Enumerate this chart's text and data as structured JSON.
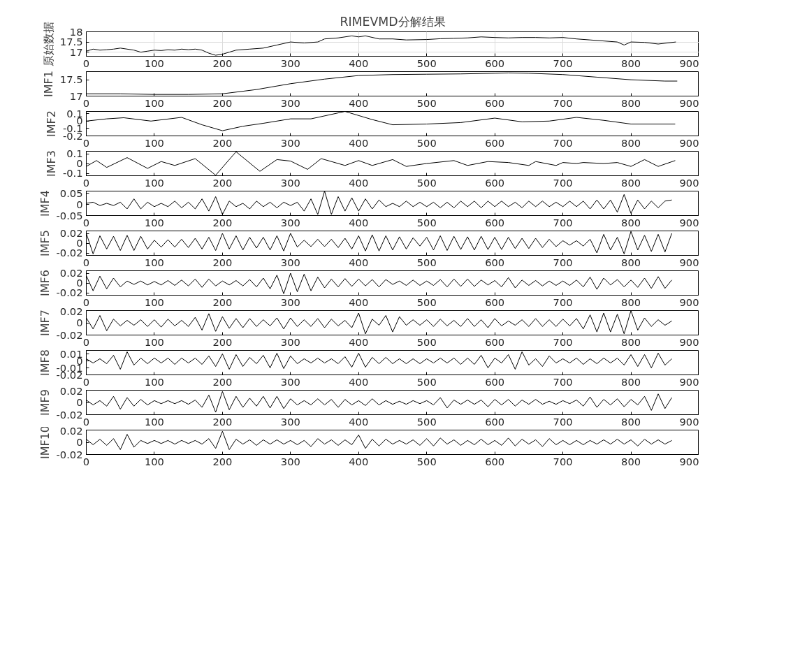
{
  "chart_data": [
    {
      "type": "line",
      "title": "RIMEVMD分解结果",
      "ylabel": "原始数据",
      "color": "#000000",
      "grid": true,
      "xlim": [
        0,
        900
      ],
      "xticks": [
        0,
        100,
        200,
        300,
        400,
        500,
        600,
        700,
        800,
        900
      ],
      "ylim": [
        16.8,
        18
      ],
      "yticks": [
        17,
        17.5,
        18
      ],
      "x": [
        0,
        10,
        20,
        30,
        40,
        50,
        60,
        70,
        80,
        90,
        100,
        110,
        120,
        130,
        140,
        150,
        160,
        170,
        180,
        190,
        200,
        210,
        220,
        240,
        260,
        280,
        300,
        320,
        340,
        350,
        370,
        390,
        400,
        410,
        430,
        450,
        470,
        500,
        520,
        540,
        560,
        580,
        600,
        620,
        640,
        660,
        680,
        700,
        720,
        740,
        760,
        780,
        790,
        800,
        820,
        840,
        866
      ],
      "values": [
        17.05,
        17.15,
        17.1,
        17.12,
        17.15,
        17.2,
        17.15,
        17.1,
        17.0,
        17.05,
        17.1,
        17.08,
        17.12,
        17.1,
        17.15,
        17.12,
        17.15,
        17.1,
        16.95,
        16.85,
        16.9,
        17.0,
        17.1,
        17.15,
        17.2,
        17.35,
        17.5,
        17.45,
        17.5,
        17.65,
        17.7,
        17.8,
        17.75,
        17.8,
        17.65,
        17.65,
        17.6,
        17.62,
        17.66,
        17.68,
        17.7,
        17.75,
        17.72,
        17.7,
        17.72,
        17.72,
        17.7,
        17.72,
        17.65,
        17.6,
        17.55,
        17.5,
        17.35,
        17.5,
        17.48,
        17.4,
        17.5
      ]
    },
    {
      "type": "line",
      "ylabel": "IMF1",
      "color": "#000000",
      "xlim": [
        0,
        900
      ],
      "xticks": [
        0,
        100,
        200,
        300,
        400,
        500,
        600,
        700,
        800,
        900
      ],
      "ylim": [
        17,
        17.75
      ],
      "yticks": [
        17,
        17.5
      ],
      "x": [
        0,
        50,
        100,
        150,
        200,
        250,
        300,
        350,
        400,
        450,
        500,
        550,
        600,
        620,
        650,
        700,
        750,
        800,
        850,
        868
      ],
      "values": [
        17.07,
        17.07,
        17.05,
        17.05,
        17.07,
        17.2,
        17.38,
        17.52,
        17.63,
        17.66,
        17.67,
        17.68,
        17.7,
        17.71,
        17.7,
        17.66,
        17.58,
        17.5,
        17.46,
        17.46
      ]
    },
    {
      "type": "line",
      "ylabel": "IMF2",
      "color": "#000000",
      "xlim": [
        0,
        900
      ],
      "xticks": [
        0,
        100,
        200,
        300,
        400,
        500,
        600,
        700,
        800,
        900
      ],
      "ylim": [
        -0.2,
        0.13
      ],
      "yticks": [
        -0.2,
        -0.1,
        0,
        0.1
      ],
      "x": [
        0,
        30,
        55,
        95,
        140,
        170,
        200,
        230,
        260,
        300,
        330,
        380,
        420,
        450,
        500,
        550,
        600,
        640,
        680,
        720,
        760,
        800,
        865
      ],
      "values": [
        0.0,
        0.03,
        0.045,
        0.0,
        0.05,
        -0.05,
        -0.13,
        -0.07,
        -0.03,
        0.03,
        0.03,
        0.13,
        0.02,
        -0.05,
        -0.04,
        -0.02,
        0.04,
        -0.01,
        0.0,
        0.05,
        0.01,
        -0.04,
        -0.04
      ]
    },
    {
      "type": "line",
      "ylabel": "IMF3",
      "color": "#000000",
      "xlim": [
        0,
        900
      ],
      "xticks": [
        0,
        100,
        200,
        300,
        400,
        500,
        600,
        700,
        800,
        900
      ],
      "ylim": [
        -0.125,
        0.125
      ],
      "yticks": [
        -0.1,
        0,
        0.1
      ],
      "x": [
        0,
        15,
        30,
        60,
        90,
        110,
        130,
        160,
        190,
        220,
        255,
        280,
        300,
        325,
        345,
        380,
        400,
        420,
        450,
        470,
        500,
        540,
        560,
        590,
        620,
        650,
        660,
        690,
        700,
        720,
        730,
        760,
        780,
        800,
        820,
        840,
        865
      ],
      "values": [
        -0.03,
        0.03,
        -0.04,
        0.06,
        -0.05,
        0.02,
        -0.02,
        0.05,
        -0.12,
        0.12,
        -0.08,
        0.04,
        0.025,
        -0.06,
        0.05,
        -0.02,
        0.03,
        -0.02,
        0.04,
        -0.03,
        0.0,
        0.03,
        -0.02,
        0.02,
        0.01,
        -0.02,
        0.02,
        -0.02,
        0.01,
        0.0,
        0.01,
        0.0,
        0.01,
        -0.03,
        0.04,
        -0.03,
        0.03
      ]
    },
    {
      "type": "line",
      "ylabel": "IMF4",
      "color": "#000000",
      "xlim": [
        0,
        900
      ],
      "xticks": [
        0,
        100,
        200,
        300,
        400,
        500,
        600,
        700,
        800,
        900
      ],
      "ylim": [
        -0.05,
        0.06
      ],
      "yticks": [
        -0.05,
        0,
        0.05
      ],
      "x": [
        0,
        10,
        20,
        30,
        40,
        50,
        60,
        70,
        80,
        90,
        100,
        110,
        120,
        130,
        140,
        150,
        160,
        170,
        180,
        190,
        200,
        210,
        220,
        230,
        240,
        250,
        260,
        270,
        280,
        290,
        300,
        310,
        320,
        330,
        340,
        350,
        360,
        370,
        380,
        390,
        400,
        410,
        420,
        430,
        440,
        450,
        460,
        470,
        480,
        490,
        500,
        510,
        520,
        530,
        540,
        550,
        560,
        570,
        580,
        590,
        600,
        610,
        620,
        630,
        640,
        650,
        660,
        670,
        680,
        690,
        700,
        710,
        720,
        730,
        740,
        750,
        760,
        770,
        780,
        790,
        800,
        810,
        820,
        830,
        840,
        850,
        860
      ],
      "values": [
        0.005,
        0.01,
        -0.005,
        0.005,
        -0.005,
        0.01,
        -0.02,
        0.025,
        -0.02,
        0.01,
        -0.01,
        0.005,
        -0.01,
        0.015,
        -0.015,
        0.01,
        -0.02,
        0.025,
        -0.03,
        0.035,
        -0.045,
        0.015,
        -0.01,
        0.005,
        -0.02,
        0.015,
        -0.01,
        0.01,
        -0.015,
        0.01,
        -0.005,
        0.01,
        -0.03,
        0.025,
        -0.045,
        0.06,
        -0.045,
        0.035,
        -0.03,
        0.03,
        -0.03,
        0.025,
        -0.02,
        0.02,
        -0.01,
        0.005,
        -0.01,
        0.015,
        -0.01,
        0.01,
        -0.01,
        0.01,
        -0.015,
        0.01,
        -0.015,
        0.015,
        -0.01,
        0.015,
        -0.015,
        0.015,
        -0.01,
        0.015,
        -0.01,
        0.01,
        -0.015,
        0.015,
        -0.01,
        0.015,
        -0.01,
        0.01,
        -0.01,
        0.015,
        -0.01,
        0.015,
        -0.02,
        0.02,
        -0.02,
        0.02,
        -0.035,
        0.045,
        -0.04,
        0.02,
        -0.02,
        0.015,
        -0.015,
        0.015,
        0.02
      ]
    },
    {
      "type": "line",
      "ylabel": "IMF5",
      "color": "#000000",
      "xlim": [
        0,
        900
      ],
      "xticks": [
        0,
        100,
        200,
        300,
        400,
        500,
        600,
        700,
        800,
        900
      ],
      "ylim": [
        -0.025,
        0.025
      ],
      "yticks": [
        -0.02,
        0,
        0.02
      ],
      "x": [
        0,
        10,
        20,
        30,
        40,
        50,
        60,
        70,
        80,
        90,
        100,
        110,
        120,
        130,
        140,
        150,
        160,
        170,
        180,
        190,
        200,
        210,
        220,
        230,
        240,
        250,
        260,
        270,
        280,
        290,
        300,
        310,
        320,
        330,
        340,
        350,
        360,
        370,
        380,
        390,
        400,
        410,
        420,
        430,
        440,
        450,
        460,
        470,
        480,
        490,
        500,
        510,
        520,
        530,
        540,
        550,
        560,
        570,
        580,
        590,
        600,
        610,
        620,
        630,
        640,
        650,
        660,
        670,
        680,
        690,
        700,
        710,
        720,
        730,
        740,
        750,
        760,
        770,
        780,
        790,
        800,
        810,
        820,
        830,
        840,
        850,
        860
      ],
      "values": [
        0.02,
        -0.022,
        0.015,
        -0.012,
        0.014,
        -0.015,
        0.016,
        -0.015,
        0.014,
        -0.012,
        0.006,
        -0.008,
        0.007,
        -0.008,
        0.008,
        -0.009,
        0.01,
        -0.012,
        0.012,
        -0.015,
        0.02,
        -0.012,
        0.015,
        -0.014,
        0.012,
        -0.01,
        0.012,
        -0.014,
        0.015,
        -0.016,
        0.02,
        -0.008,
        0.006,
        -0.007,
        0.008,
        -0.007,
        0.008,
        -0.009,
        0.01,
        -0.012,
        0.015,
        -0.016,
        0.017,
        -0.016,
        0.015,
        -0.014,
        0.013,
        -0.012,
        0.011,
        -0.006,
        0.012,
        -0.014,
        0.015,
        -0.015,
        0.014,
        -0.013,
        0.013,
        -0.014,
        0.014,
        -0.013,
        0.012,
        -0.013,
        0.012,
        -0.011,
        0.01,
        -0.011,
        0.01,
        -0.009,
        0.008,
        -0.007,
        0.005,
        -0.004,
        0.005,
        -0.006,
        0.008,
        -0.02,
        0.018,
        -0.014,
        0.012,
        -0.022,
        0.024,
        -0.014,
        0.016,
        -0.017,
        0.018,
        -0.018,
        0.02
      ]
    },
    {
      "type": "line",
      "ylabel": "IMF6",
      "color": "#000000",
      "xlim": [
        0,
        900
      ],
      "xticks": [
        0,
        100,
        200,
        300,
        400,
        500,
        600,
        700,
        800,
        900
      ],
      "ylim": [
        -0.025,
        0.025
      ],
      "yticks": [
        -0.02,
        0,
        0.02
      ],
      "x": [
        0,
        10,
        20,
        30,
        40,
        50,
        60,
        70,
        80,
        90,
        100,
        110,
        120,
        130,
        140,
        150,
        160,
        170,
        180,
        190,
        200,
        210,
        220,
        230,
        240,
        250,
        260,
        270,
        280,
        290,
        300,
        310,
        320,
        330,
        340,
        350,
        360,
        370,
        380,
        390,
        400,
        410,
        420,
        430,
        440,
        450,
        460,
        470,
        480,
        490,
        500,
        510,
        520,
        530,
        540,
        550,
        560,
        570,
        580,
        590,
        600,
        610,
        620,
        630,
        640,
        650,
        660,
        670,
        680,
        690,
        700,
        710,
        720,
        730,
        740,
        750,
        760,
        770,
        780,
        790,
        800,
        810,
        820,
        830,
        840,
        850,
        860
      ],
      "values": [
        0.015,
        -0.016,
        0.014,
        -0.012,
        0.01,
        -0.008,
        0.004,
        -0.003,
        0.004,
        -0.004,
        0.003,
        -0.004,
        0.005,
        -0.005,
        0.006,
        -0.006,
        0.008,
        -0.009,
        0.008,
        -0.006,
        0.004,
        -0.004,
        0.005,
        -0.006,
        0.007,
        -0.008,
        0.01,
        -0.012,
        0.016,
        -0.022,
        0.02,
        -0.018,
        0.018,
        -0.016,
        0.012,
        -0.01,
        0.008,
        -0.008,
        0.009,
        -0.007,
        0.008,
        -0.006,
        0.007,
        -0.008,
        0.007,
        -0.003,
        0.004,
        -0.005,
        0.006,
        -0.005,
        0.004,
        -0.005,
        0.007,
        -0.008,
        0.008,
        -0.007,
        0.008,
        -0.007,
        0.006,
        -0.004,
        0.005,
        -0.008,
        0.011,
        -0.01,
        0.006,
        -0.005,
        0.005,
        -0.006,
        0.004,
        -0.005,
        0.004,
        -0.005,
        0.006,
        -0.008,
        0.012,
        -0.013,
        0.01,
        -0.004,
        0.007,
        -0.008,
        0.006,
        -0.009,
        0.01,
        -0.011,
        0.013,
        -0.011,
        0.006
      ]
    },
    {
      "type": "line",
      "ylabel": "IMF7",
      "color": "#000000",
      "xlim": [
        0,
        900
      ],
      "xticks": [
        0,
        100,
        200,
        300,
        400,
        500,
        600,
        700,
        800,
        900
      ],
      "ylim": [
        -0.02,
        0.02
      ],
      "yticks": [
        -0.02,
        0,
        0.02
      ],
      "x": [
        0,
        10,
        20,
        30,
        40,
        50,
        60,
        70,
        80,
        90,
        100,
        110,
        120,
        130,
        140,
        150,
        160,
        170,
        180,
        190,
        200,
        210,
        220,
        230,
        240,
        250,
        260,
        270,
        280,
        290,
        300,
        310,
        320,
        330,
        340,
        350,
        360,
        370,
        380,
        390,
        400,
        410,
        420,
        430,
        440,
        450,
        460,
        470,
        480,
        490,
        500,
        510,
        520,
        530,
        540,
        550,
        560,
        570,
        580,
        590,
        600,
        610,
        620,
        630,
        640,
        650,
        660,
        670,
        680,
        690,
        700,
        710,
        720,
        730,
        740,
        750,
        760,
        770,
        780,
        790,
        800,
        810,
        820,
        830,
        840,
        850,
        860
      ],
      "values": [
        0.008,
        -0.01,
        0.012,
        -0.013,
        0.006,
        -0.005,
        0.004,
        -0.004,
        0.005,
        -0.006,
        0.005,
        -0.007,
        0.006,
        -0.005,
        0.004,
        -0.006,
        0.009,
        -0.012,
        0.015,
        -0.014,
        0.01,
        -0.009,
        0.007,
        -0.008,
        0.007,
        -0.006,
        0.005,
        -0.005,
        0.008,
        -0.01,
        0.008,
        -0.006,
        0.005,
        -0.006,
        0.007,
        -0.008,
        0.006,
        -0.005,
        0.004,
        -0.008,
        0.016,
        -0.018,
        0.006,
        -0.004,
        0.012,
        -0.015,
        0.01,
        -0.004,
        0.005,
        -0.004,
        0.005,
        -0.006,
        0.006,
        -0.005,
        0.004,
        -0.006,
        0.007,
        -0.006,
        0.005,
        -0.008,
        0.007,
        -0.005,
        0.003,
        -0.004,
        0.005,
        -0.006,
        0.007,
        -0.006,
        0.005,
        -0.006,
        0.006,
        -0.005,
        0.007,
        -0.01,
        0.013,
        -0.015,
        0.016,
        -0.015,
        0.014,
        -0.018,
        0.02,
        -0.012,
        0.008,
        -0.006,
        0.005,
        -0.004,
        0.003
      ]
    },
    {
      "type": "line",
      "ylabel": "IMF8",
      "color": "#000000",
      "xlim": [
        0,
        900
      ],
      "xticks": [
        0,
        100,
        200,
        300,
        400,
        500,
        600,
        700,
        800,
        900
      ],
      "ylim": [
        -0.02,
        0.015
      ],
      "yticks": [
        -0.02,
        -0.01,
        0,
        0.01
      ],
      "x": [
        0,
        10,
        20,
        30,
        40,
        50,
        60,
        70,
        80,
        90,
        100,
        110,
        120,
        130,
        140,
        150,
        160,
        170,
        180,
        190,
        200,
        210,
        220,
        230,
        240,
        250,
        260,
        270,
        280,
        290,
        300,
        310,
        320,
        330,
        340,
        350,
        360,
        370,
        380,
        390,
        400,
        410,
        420,
        430,
        440,
        450,
        460,
        470,
        480,
        490,
        500,
        510,
        520,
        530,
        540,
        550,
        560,
        570,
        580,
        590,
        600,
        610,
        620,
        630,
        640,
        650,
        660,
        670,
        680,
        690,
        700,
        710,
        720,
        730,
        740,
        750,
        760,
        770,
        780,
        790,
        800,
        810,
        820,
        830,
        840,
        850,
        860
      ],
      "values": [
        0.003,
        -0.003,
        0.003,
        -0.004,
        0.008,
        -0.012,
        0.013,
        -0.006,
        0.004,
        -0.004,
        0.004,
        -0.003,
        0.004,
        -0.005,
        0.004,
        -0.003,
        0.004,
        -0.005,
        0.007,
        -0.008,
        0.01,
        -0.012,
        0.009,
        -0.008,
        0.005,
        -0.004,
        0.008,
        -0.01,
        0.011,
        -0.011,
        0.007,
        -0.004,
        0.003,
        -0.003,
        0.004,
        -0.003,
        0.003,
        -0.004,
        0.006,
        -0.009,
        0.011,
        -0.009,
        0.005,
        -0.004,
        0.005,
        -0.004,
        0.003,
        -0.004,
        0.003,
        -0.004,
        0.003,
        -0.003,
        0.004,
        -0.003,
        0.004,
        -0.005,
        0.004,
        -0.005,
        0.008,
        -0.01,
        0.004,
        -0.003,
        0.009,
        -0.012,
        0.013,
        -0.006,
        0.003,
        -0.008,
        0.007,
        -0.003,
        0.003,
        -0.003,
        0.004,
        -0.005,
        0.003,
        -0.004,
        0.004,
        -0.003,
        0.004,
        -0.006,
        0.009,
        -0.008,
        0.009,
        -0.01,
        0.011,
        -0.006,
        0.003
      ]
    },
    {
      "type": "line",
      "ylabel": "IMF9",
      "color": "#000000",
      "xlim": [
        0,
        900
      ],
      "xticks": [
        0,
        100,
        200,
        300,
        400,
        500,
        600,
        700,
        800,
        900
      ],
      "ylim": [
        -0.02,
        0.02
      ],
      "yticks": [
        -0.02,
        0,
        0.02
      ],
      "x": [
        0,
        10,
        20,
        30,
        40,
        50,
        60,
        70,
        80,
        90,
        100,
        110,
        120,
        130,
        140,
        150,
        160,
        170,
        180,
        190,
        200,
        210,
        220,
        230,
        240,
        250,
        260,
        270,
        280,
        290,
        300,
        310,
        320,
        330,
        340,
        350,
        360,
        370,
        380,
        390,
        400,
        410,
        420,
        430,
        440,
        450,
        460,
        470,
        480,
        490,
        500,
        510,
        520,
        530,
        540,
        550,
        560,
        570,
        580,
        590,
        600,
        610,
        620,
        630,
        640,
        650,
        660,
        670,
        680,
        690,
        700,
        710,
        720,
        730,
        740,
        750,
        760,
        770,
        780,
        790,
        800,
        810,
        820,
        830,
        840,
        850,
        860
      ],
      "values": [
        0.004,
        -0.004,
        0.003,
        -0.006,
        0.01,
        -0.011,
        0.008,
        -0.006,
        0.005,
        -0.004,
        0.003,
        -0.002,
        0.003,
        -0.002,
        0.003,
        -0.003,
        0.004,
        -0.008,
        0.012,
        -0.016,
        0.018,
        -0.012,
        0.01,
        -0.008,
        0.007,
        -0.006,
        0.01,
        -0.009,
        0.01,
        -0.01,
        0.006,
        -0.004,
        0.003,
        -0.004,
        0.006,
        -0.004,
        0.005,
        -0.008,
        0.005,
        -0.004,
        0.003,
        -0.005,
        0.006,
        -0.004,
        0.003,
        -0.003,
        0.002,
        -0.003,
        0.003,
        -0.002,
        0.003,
        -0.004,
        0.008,
        -0.009,
        0.004,
        -0.003,
        0.004,
        -0.003,
        0.004,
        -0.007,
        0.005,
        -0.004,
        0.005,
        -0.006,
        0.004,
        -0.003,
        0.005,
        -0.003,
        0.002,
        -0.003,
        0.003,
        -0.002,
        0.004,
        -0.006,
        0.009,
        -0.008,
        0.005,
        -0.004,
        0.006,
        -0.007,
        0.005,
        -0.004,
        0.01,
        -0.013,
        0.014,
        -0.01,
        0.008
      ]
    },
    {
      "type": "line",
      "ylabel": "IMF10",
      "color": "#000000",
      "xlim": [
        0,
        900
      ],
      "xticks": [
        0,
        100,
        200,
        300,
        400,
        500,
        600,
        700,
        800,
        900
      ],
      "ylim": [
        -0.02,
        0.02
      ],
      "yticks": [
        -0.02,
        0,
        0.02
      ],
      "x": [
        0,
        10,
        20,
        30,
        40,
        50,
        60,
        70,
        80,
        90,
        100,
        110,
        120,
        130,
        140,
        150,
        160,
        170,
        180,
        190,
        200,
        210,
        220,
        230,
        240,
        250,
        260,
        270,
        280,
        290,
        300,
        310,
        320,
        330,
        340,
        350,
        360,
        370,
        380,
        390,
        400,
        410,
        420,
        430,
        440,
        450,
        460,
        470,
        480,
        490,
        500,
        510,
        520,
        530,
        540,
        550,
        560,
        570,
        580,
        590,
        600,
        610,
        620,
        630,
        640,
        650,
        660,
        670,
        680,
        690,
        700,
        710,
        720,
        730,
        740,
        750,
        760,
        770,
        780,
        790,
        800,
        810,
        820,
        830,
        840,
        850,
        860
      ],
      "values": [
        0.005,
        -0.004,
        0.005,
        -0.005,
        0.006,
        -0.012,
        0.013,
        -0.008,
        0.003,
        -0.002,
        0.003,
        -0.002,
        0.003,
        -0.003,
        0.003,
        -0.002,
        0.003,
        -0.003,
        0.006,
        -0.01,
        0.018,
        -0.012,
        0.005,
        -0.003,
        0.004,
        -0.005,
        0.004,
        -0.003,
        0.004,
        -0.003,
        0.003,
        -0.004,
        0.003,
        -0.007,
        0.006,
        -0.003,
        0.004,
        -0.005,
        0.004,
        -0.004,
        0.012,
        -0.01,
        0.005,
        -0.006,
        0.005,
        -0.003,
        0.003,
        -0.003,
        0.004,
        -0.005,
        0.006,
        -0.006,
        0.007,
        -0.003,
        0.004,
        -0.005,
        0.003,
        -0.004,
        0.005,
        -0.004,
        0.003,
        -0.005,
        0.007,
        -0.006,
        0.005,
        -0.003,
        0.004,
        -0.007,
        0.006,
        -0.004,
        0.003,
        -0.004,
        0.003,
        -0.004,
        0.003,
        -0.003,
        0.004,
        -0.003,
        0.005,
        -0.003,
        0.004,
        -0.006,
        0.005,
        -0.003,
        0.004,
        -0.003,
        0.003
      ]
    }
  ]
}
